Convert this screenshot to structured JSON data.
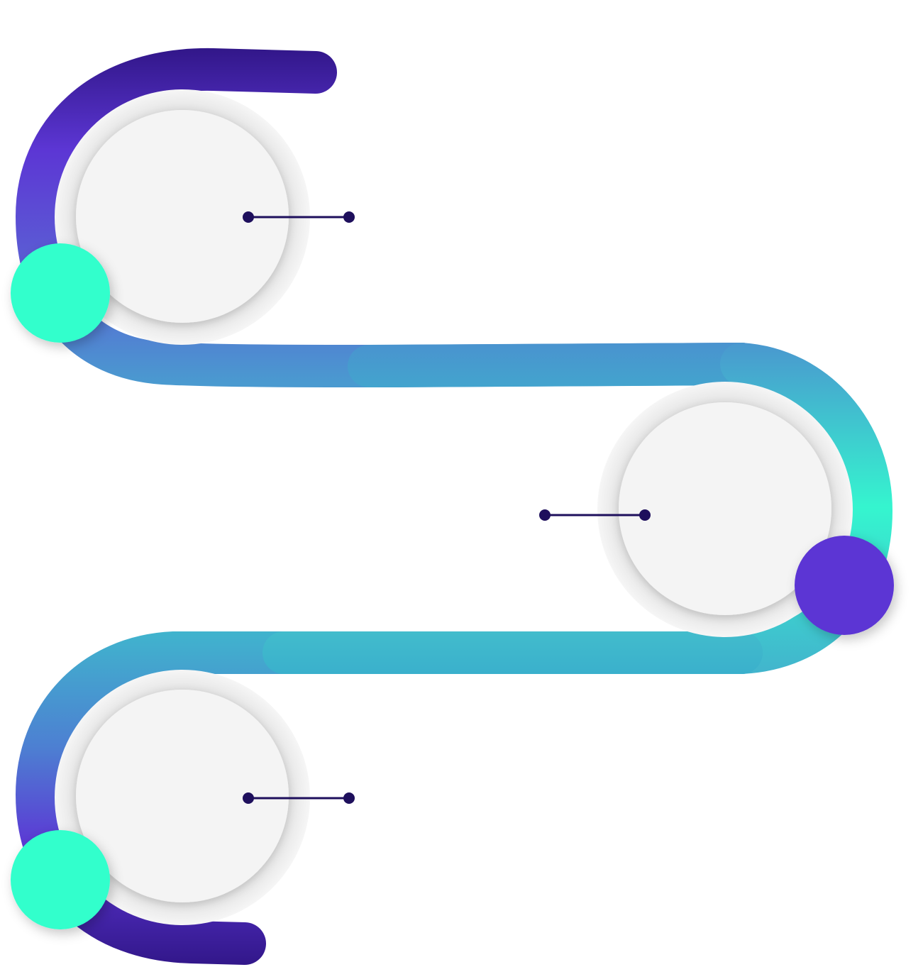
{
  "diagram": {
    "kind": "winding-timeline",
    "steps": [
      {
        "node": "step-1",
        "accent_color": "#33ffcc"
      },
      {
        "node": "step-2",
        "accent_color": "#5c36d4"
      },
      {
        "node": "step-3",
        "accent_color": "#33ffcc"
      }
    ]
  },
  "colors": {
    "path_purple": "#5533cc",
    "path_dark_purple": "#32178a",
    "path_blue": "#4a96cf",
    "path_teal": "#3ab0cc",
    "path_mint": "#35f5cf",
    "circle_fill": "#f4f4f4",
    "circle_ring": "#ececec",
    "connector": "#1e0f5c",
    "background": "#ffffff"
  }
}
